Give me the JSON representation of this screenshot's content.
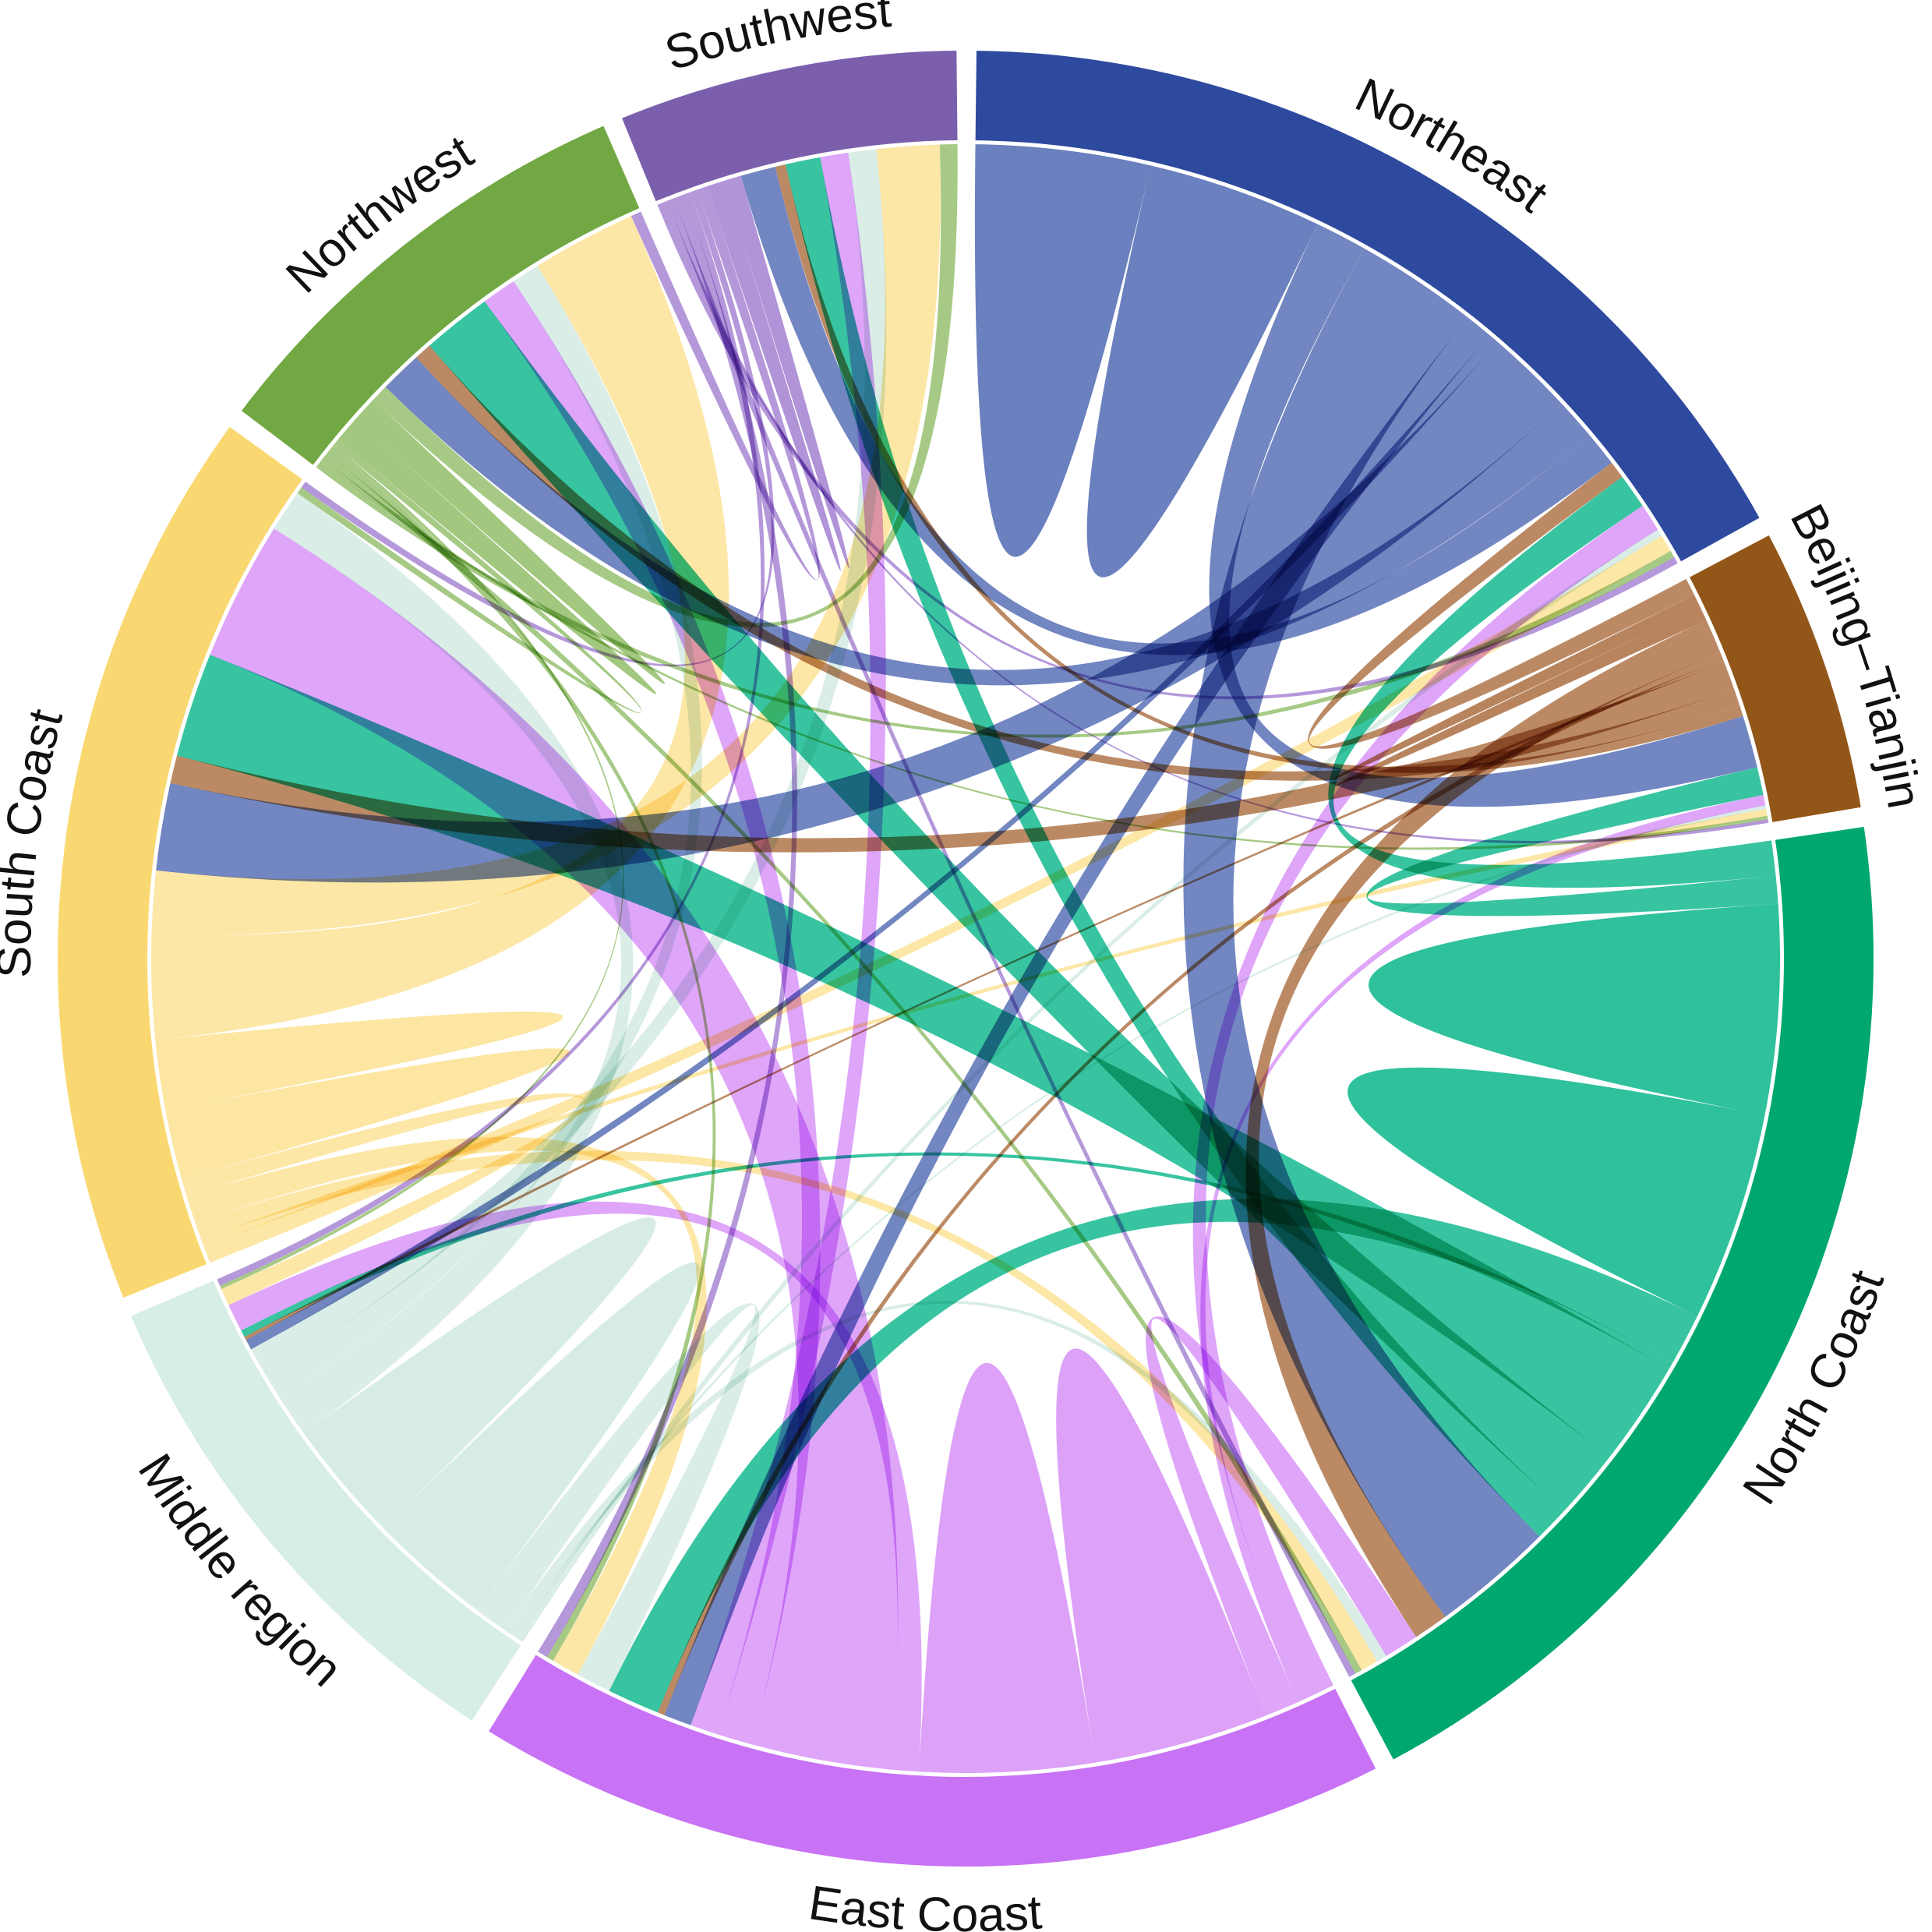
{
  "chart_data": {
    "type": "chord",
    "title": "",
    "regions": [
      {
        "name": "Northeast",
        "color": "#2e4a9e",
        "ribbon_color": "#4a64b0"
      },
      {
        "name": "Beijing–Tianjin",
        "color": "#935619",
        "ribbon_color": "#a8693a"
      },
      {
        "name": "North Coast",
        "color": "#00a86f",
        "ribbon_color": "#00b386"
      },
      {
        "name": "East Coast",
        "color": "#c872f5",
        "ribbon_color": "#d68cf7"
      },
      {
        "name": "Middle region",
        "color": "#d7ede7",
        "ribbon_color": "#cfe8e0"
      },
      {
        "name": "South Coast",
        "color": "#fad871",
        "ribbon_color": "#fde08e"
      },
      {
        "name": "Northwest",
        "color": "#72a843",
        "ribbon_color": "#8dbb63"
      },
      {
        "name": "Southwest",
        "color": "#7b5fac",
        "ribbon_color": "#a07bd0"
      }
    ],
    "matrix": [
      [
        10,
        1.5,
        3.5,
        0.8,
        0.3,
        2.5,
        1.2,
        1.0
      ],
      [
        0.5,
        0.8,
        1.0,
        0.2,
        0.1,
        0.8,
        0.5,
        0.3
      ],
      [
        1.0,
        0.8,
        12,
        1.5,
        0.2,
        3.0,
        2.0,
        1.0
      ],
      [
        0.8,
        0.3,
        1.0,
        10,
        0.8,
        4.0,
        1.0,
        0.8
      ],
      [
        0.2,
        0.1,
        0.3,
        1.0,
        7,
        1.2,
        0.8,
        0.8
      ],
      [
        0.5,
        0.2,
        0.5,
        0.8,
        0.5,
        4,
        3.0,
        1.8
      ],
      [
        0.2,
        0.1,
        0.2,
        0.2,
        0.1,
        0.2,
        1.5,
        0.5
      ],
      [
        0.2,
        0.1,
        0.2,
        0.3,
        0.2,
        0.2,
        0.3,
        1.0
      ]
    ]
  }
}
